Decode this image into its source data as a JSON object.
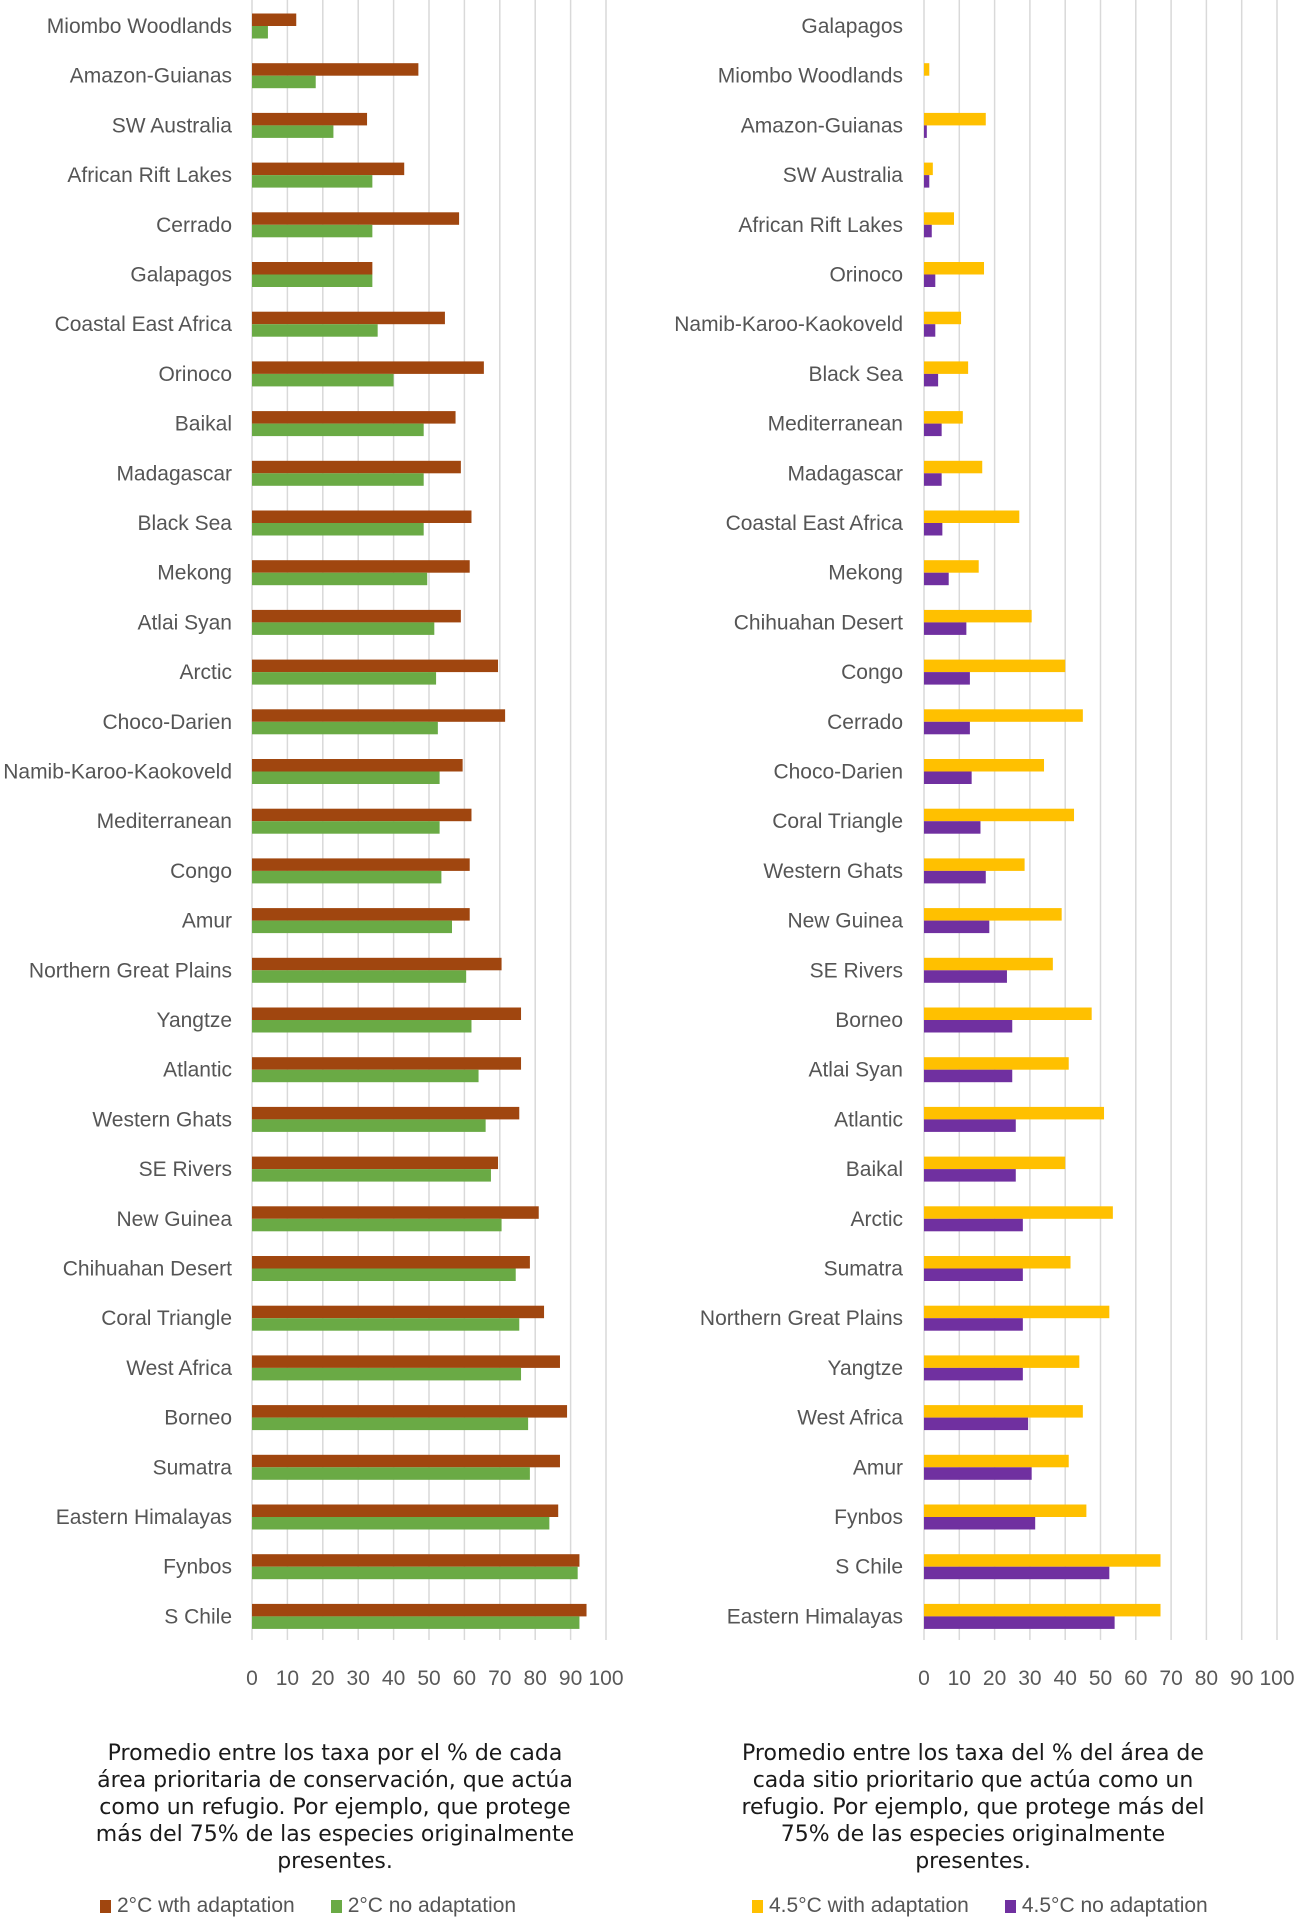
{
  "colors": {
    "two_with": "#a0460f",
    "two_no": "#6aaa45",
    "four_with": "#ffc000",
    "four_no": "#7030a0",
    "grid": "#d9d9d9",
    "text": "#555555"
  },
  "chart_data": [
    {
      "type": "bar",
      "orientation": "horizontal",
      "title": "",
      "xlabel": "",
      "ylabel": "",
      "xlim": [
        0,
        100
      ],
      "ticks": [
        "0",
        "10",
        "20",
        "30",
        "40",
        "50",
        "60",
        "70",
        "80",
        "90",
        "100"
      ],
      "grid": true,
      "legend_position": "bottom",
      "caption": "Promedio entre los taxa por el % de cada área prioritaria de conservación, que actúa como un refugio. Por ejemplo, que protege más del 75% de las especies originalmente presentes.",
      "caption_lines": [
        "Promedio entre los taxa por el % de cada",
        "área prioritaria de conservación, que actúa",
        "como un refugio. Por ejemplo, que protege",
        "más del 75% de las especies originalmente",
        "presentes."
      ],
      "categories": [
        "Miombo Woodlands",
        "Amazon-Guianas",
        "SW Australia",
        "African Rift Lakes",
        "Cerrado",
        "Galapagos",
        "Coastal East Africa",
        "Orinoco",
        "Baikal",
        "Madagascar",
        "Black Sea",
        "Mekong",
        "Atlai Syan",
        "Arctic",
        "Choco-Darien",
        "Namib-Karoo-Kaokoveld",
        "Mediterranean",
        "Congo",
        "Amur",
        "Northern Great Plains",
        "Yangtze",
        "Atlantic",
        "Western Ghats",
        "SE Rivers",
        "New Guinea",
        "Chihuahan Desert",
        "Coral Triangle",
        "West Africa",
        "Borneo",
        "Sumatra",
        "Eastern Himalayas",
        "Fynbos",
        "S Chile"
      ],
      "series": [
        {
          "name": "2°C wth adaptation",
          "color_key": "two_with",
          "values": [
            12.5,
            47,
            32.5,
            43,
            58.5,
            34,
            54.5,
            65.5,
            57.5,
            59,
            62,
            61.5,
            59,
            69.5,
            71.5,
            59.5,
            62,
            61.5,
            61.5,
            70.5,
            76,
            76,
            75.5,
            69.5,
            81,
            78.5,
            82.5,
            87,
            89,
            87,
            86.5,
            92.5,
            94.5
          ]
        },
        {
          "name": "2°C no adaptation",
          "color_key": "two_no",
          "values": [
            4.5,
            18,
            23,
            34,
            34,
            34,
            35.5,
            40,
            48.5,
            48.5,
            48.5,
            49.5,
            51.5,
            52,
            52.5,
            53,
            53,
            53.5,
            56.5,
            60.5,
            62,
            64,
            66,
            67.5,
            70.5,
            74.5,
            75.5,
            76,
            78,
            78.5,
            84,
            92,
            92.5
          ]
        }
      ]
    },
    {
      "type": "bar",
      "orientation": "horizontal",
      "title": "",
      "xlabel": "",
      "ylabel": "",
      "xlim": [
        0,
        100
      ],
      "ticks": [
        "0",
        "10",
        "20",
        "30",
        "40",
        "50",
        "60",
        "70",
        "80",
        "90",
        "100"
      ],
      "grid": true,
      "legend_position": "bottom",
      "caption": "Promedio entre los taxa del % del área de cada sitio prioritario que actúa como un refugio. Por ejemplo, que protege más del 75% de las especies originalmente presentes.",
      "caption_lines": [
        "Promedio entre los taxa del % del área de",
        "cada sitio prioritario que actúa como un",
        "refugio. Por ejemplo, que protege más del",
        "75% de las especies originalmente",
        "presentes."
      ],
      "categories": [
        "Galapagos",
        "Miombo Woodlands",
        "Amazon-Guianas",
        "SW Australia",
        "African Rift Lakes",
        "Orinoco",
        "Namib-Karoo-Kaokoveld",
        "Black Sea",
        "Mediterranean",
        "Madagascar",
        "Coastal East Africa",
        "Mekong",
        "Chihuahan Desert",
        "Congo",
        "Cerrado",
        "Choco-Darien",
        "Coral Triangle",
        "Western Ghats",
        "New Guinea",
        "SE Rivers",
        "Borneo",
        "Atlai Syan",
        "Atlantic",
        "Baikal",
        "Arctic",
        "Sumatra",
        "Northern Great Plains",
        "Yangtze",
        "West Africa",
        "Amur",
        "Fynbos",
        "S Chile",
        "Eastern Himalayas"
      ],
      "series": [
        {
          "name": "4.5°C with adaptation",
          "color_key": "four_with",
          "values": [
            0,
            1.5,
            17.5,
            2.5,
            8.5,
            17,
            10.5,
            12.5,
            11,
            16.5,
            27,
            15.5,
            30.5,
            40,
            45,
            34,
            42.5,
            28.5,
            39,
            36.5,
            47.5,
            41,
            51,
            40,
            53.5,
            41.5,
            52.5,
            44,
            45,
            41,
            46,
            67,
            67
          ]
        },
        {
          "name": "4.5°C no adaptation",
          "color_key": "four_no",
          "values": [
            0,
            0,
            0.8,
            1.5,
            2.2,
            3.2,
            3.2,
            4,
            5,
            5,
            5.2,
            7,
            12,
            13,
            13,
            13.5,
            16,
            17.5,
            18.5,
            23.5,
            25,
            25,
            26,
            26,
            28,
            28,
            28,
            28,
            29.5,
            30.5,
            31.5,
            52.5,
            54
          ]
        }
      ]
    }
  ]
}
